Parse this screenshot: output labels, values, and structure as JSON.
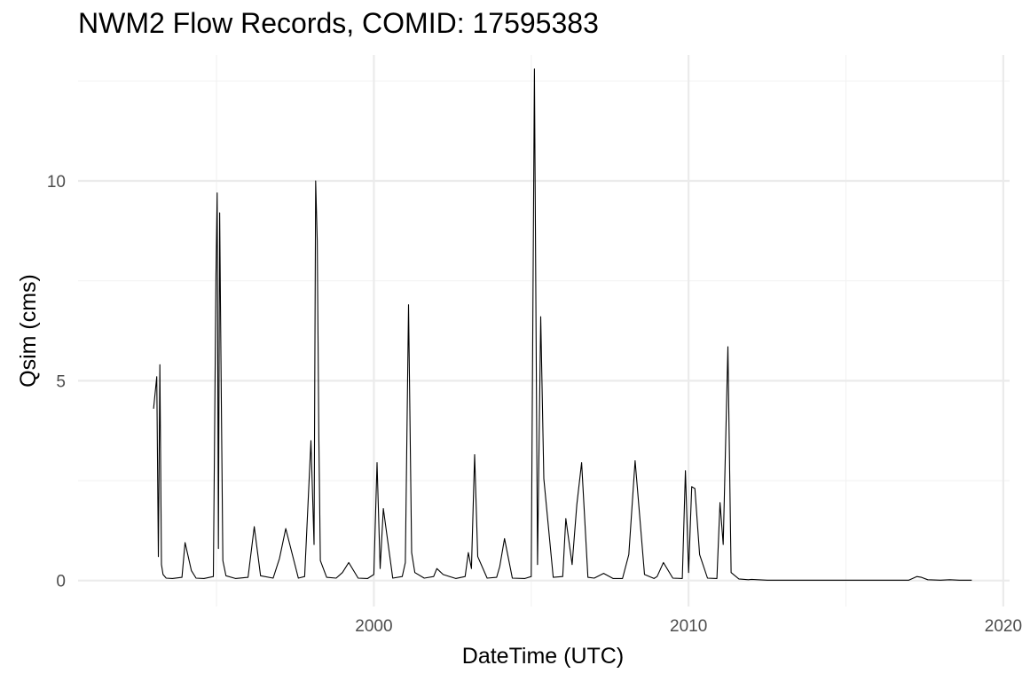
{
  "chart_data": {
    "type": "line",
    "title": "NWM2 Flow Records, COMID: 17595383",
    "xlabel": "DateTime (UTC)",
    "ylabel": "Qsim (cms)",
    "x_ticks": [
      2000,
      2010,
      2020
    ],
    "y_ticks": [
      0,
      5,
      10
    ],
    "xlim": [
      1990.6,
      2020.2
    ],
    "ylim": [
      -0.65,
      13.15
    ],
    "grid": true,
    "legend": "none",
    "colors": {
      "line": "#000000",
      "grid_major": "#ebebeb",
      "grid_minor": "#f2f2f2"
    },
    "series": [
      {
        "x": [
          1993.0,
          1993.1,
          1993.15,
          1993.2,
          1993.25,
          1993.3,
          1993.4,
          1993.6,
          1993.9,
          1994.0,
          1994.2,
          1994.35,
          1994.6,
          1994.9,
          1994.98,
          1995.02,
          1995.06,
          1995.1,
          1995.15,
          1995.2,
          1995.3,
          1995.6,
          1996.0,
          1996.2,
          1996.4,
          1996.8,
          1997.0,
          1997.2,
          1997.6,
          1997.8,
          1998.0,
          1998.1,
          1998.15,
          1998.2,
          1998.25,
          1998.3,
          1998.5,
          1998.8,
          1999.0,
          1999.2,
          1999.5,
          1999.8,
          2000.0,
          2000.1,
          2000.2,
          2000.3,
          2000.6,
          2000.9,
          2001.0,
          2001.1,
          2001.2,
          2001.3,
          2001.6,
          2001.9,
          2002.0,
          2002.2,
          2002.6,
          2002.9,
          2003.0,
          2003.1,
          2003.2,
          2003.3,
          2003.6,
          2003.9,
          2004.0,
          2004.15,
          2004.4,
          2004.8,
          2005.0,
          2005.1,
          2005.2,
          2005.3,
          2005.4,
          2005.7,
          2006.0,
          2006.1,
          2006.3,
          2006.45,
          2006.6,
          2006.8,
          2007.0,
          2007.3,
          2007.6,
          2007.9,
          2008.1,
          2008.3,
          2008.6,
          2008.9,
          2009.0,
          2009.2,
          2009.5,
          2009.8,
          2009.9,
          2010.0,
          2010.1,
          2010.2,
          2010.35,
          2010.6,
          2010.9,
          2011.0,
          2011.1,
          2011.25,
          2011.35,
          2011.6,
          2011.9,
          2012.0,
          2012.2,
          2012.5,
          2013.0,
          2013.5,
          2014.0,
          2014.5,
          2015.0,
          2015.5,
          2016.0,
          2016.5,
          2017.0,
          2017.25,
          2017.4,
          2017.6,
          2018.0,
          2018.3,
          2018.6,
          2019.0
        ],
        "y": [
          4.3,
          5.1,
          0.6,
          5.4,
          0.4,
          0.15,
          0.06,
          0.05,
          0.08,
          0.95,
          0.25,
          0.06,
          0.05,
          0.1,
          7.6,
          9.7,
          0.8,
          9.2,
          4.7,
          0.5,
          0.12,
          0.05,
          0.08,
          1.35,
          0.12,
          0.06,
          0.55,
          1.3,
          0.06,
          0.1,
          3.5,
          0.9,
          10.0,
          8.5,
          3.6,
          0.5,
          0.08,
          0.06,
          0.2,
          0.45,
          0.06,
          0.05,
          0.15,
          2.95,
          0.3,
          1.8,
          0.06,
          0.1,
          0.45,
          6.9,
          0.7,
          0.2,
          0.06,
          0.1,
          0.3,
          0.15,
          0.05,
          0.1,
          0.7,
          0.3,
          3.15,
          0.6,
          0.06,
          0.08,
          0.35,
          1.05,
          0.06,
          0.05,
          0.1,
          12.8,
          0.4,
          6.6,
          2.55,
          0.08,
          0.1,
          1.55,
          0.4,
          1.9,
          2.95,
          0.08,
          0.06,
          0.18,
          0.05,
          0.05,
          0.65,
          3.0,
          0.15,
          0.05,
          0.1,
          0.45,
          0.06,
          0.05,
          2.75,
          0.2,
          2.35,
          2.3,
          0.65,
          0.06,
          0.05,
          1.95,
          0.9,
          5.85,
          0.2,
          0.04,
          0.02,
          0.03,
          0.02,
          0.01,
          0.01,
          0.01,
          0.01,
          0.01,
          0.01,
          0.01,
          0.01,
          0.01,
          0.01,
          0.1,
          0.08,
          0.02,
          0.01,
          0.02,
          0.01,
          0.01
        ]
      }
    ]
  }
}
